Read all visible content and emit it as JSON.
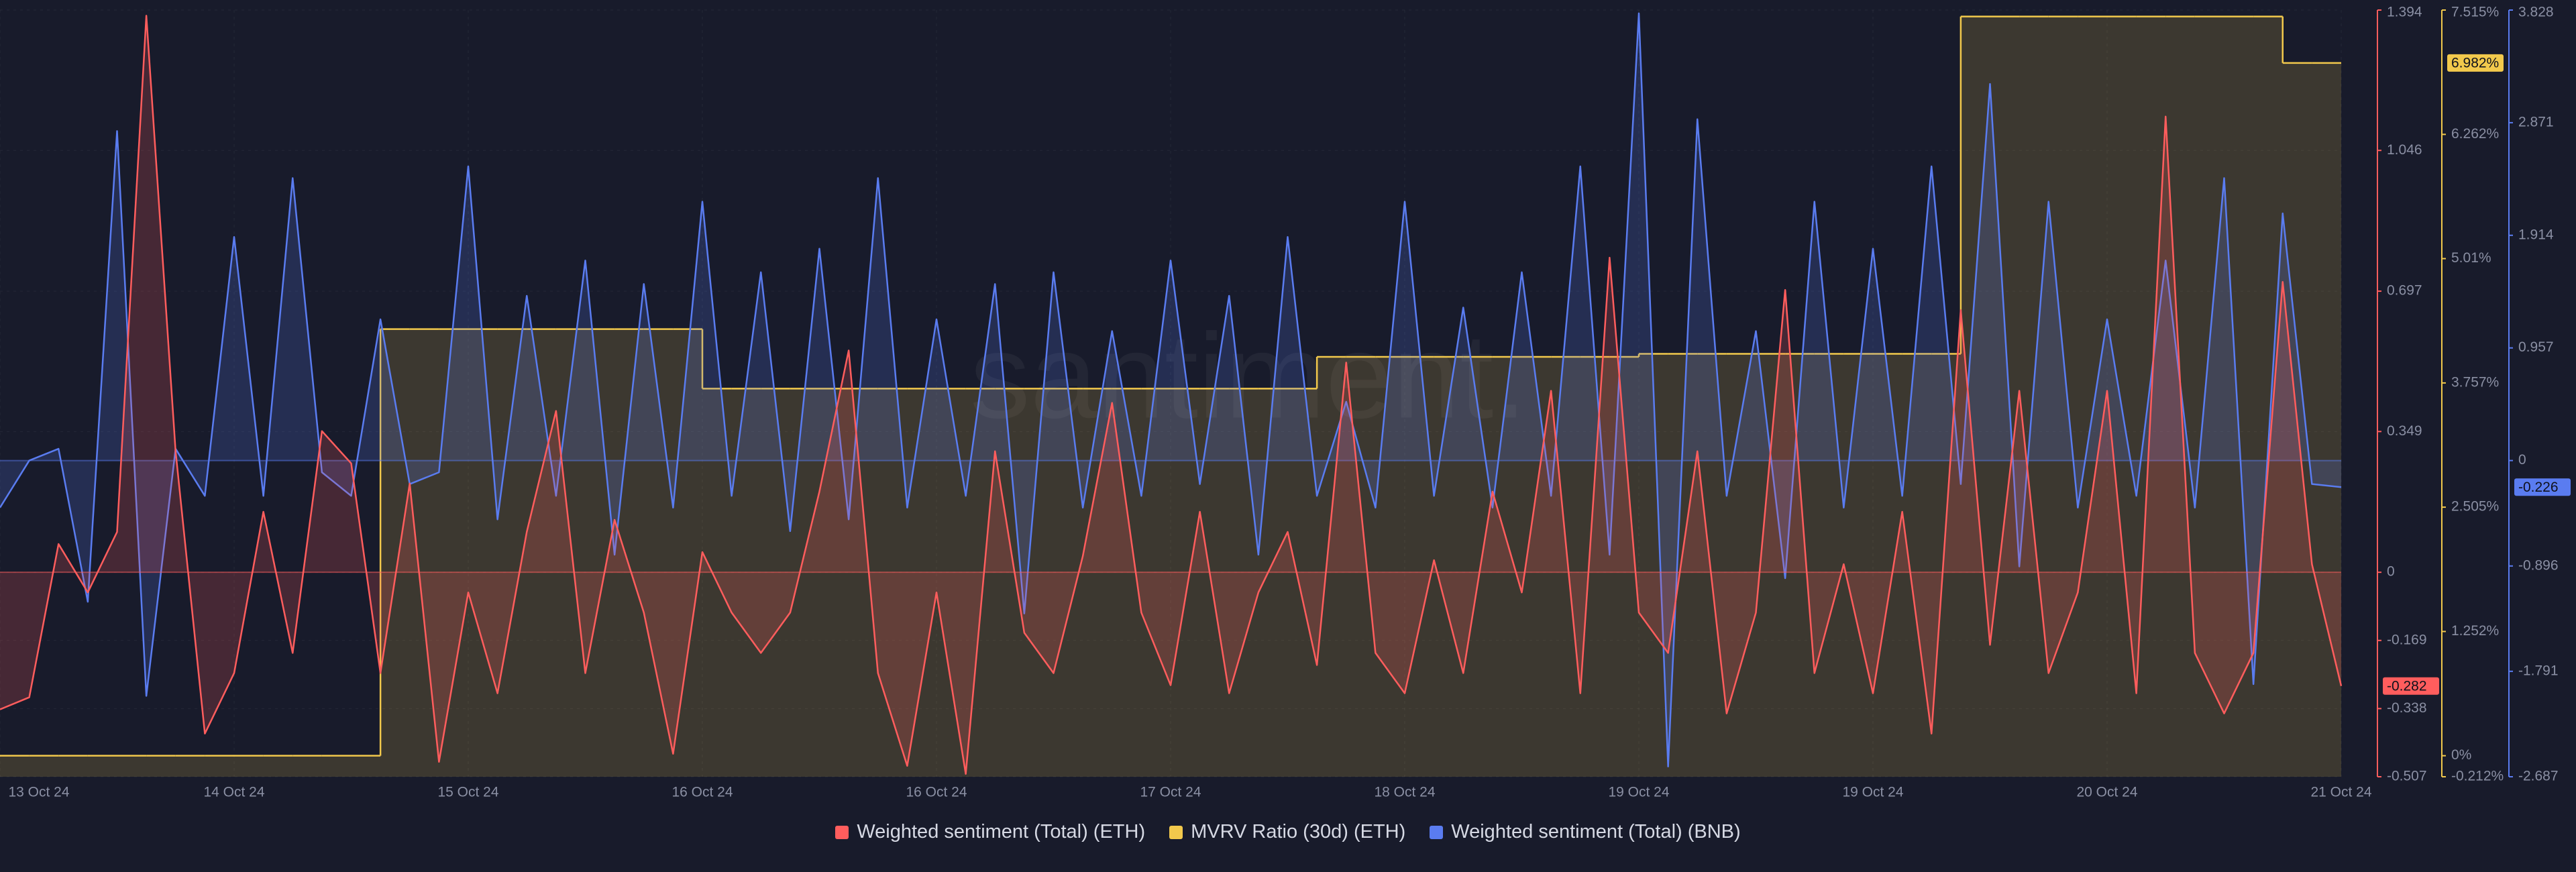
{
  "chart_data": {
    "type": "line",
    "watermark": "santiment.",
    "grid": true,
    "categories": [
      "13 Oct 24",
      null,
      null,
      null,
      null,
      null,
      null,
      null,
      "14 Oct 24",
      null,
      null,
      null,
      null,
      null,
      null,
      null,
      "15 Oct 24",
      null,
      null,
      null,
      null,
      null,
      null,
      null,
      "16 Oct 24",
      null,
      null,
      null,
      null,
      null,
      null,
      null,
      "16 Oct 24",
      null,
      null,
      null,
      null,
      null,
      null,
      null,
      "17 Oct 24",
      null,
      null,
      null,
      null,
      null,
      null,
      null,
      "18 Oct 24",
      null,
      null,
      null,
      null,
      null,
      null,
      null,
      "19 Oct 24",
      null,
      null,
      null,
      null,
      null,
      null,
      null,
      "19 Oct 24",
      null,
      null,
      null,
      null,
      null,
      null,
      null,
      "20 Oct 24",
      null,
      null,
      null,
      null,
      null,
      null,
      null,
      "21 Oct 24"
    ],
    "ylim": [
      -0.507,
      1.394
    ],
    "yticks": [
      -0.507,
      -0.338,
      -0.169,
      0,
      0.349,
      0.697,
      1.046,
      1.394
    ],
    "y2lim": [
      -0.212,
      7.515
    ],
    "y2ticks": [
      {
        "value": -0.212,
        "label": "-0.212%"
      },
      {
        "value": 0,
        "label": "0%"
      },
      {
        "value": 1.252,
        "label": "1.252%"
      },
      {
        "value": 2.505,
        "label": "2.505%"
      },
      {
        "value": 3.757,
        "label": "3.757%"
      },
      {
        "value": 5.01,
        "label": "5.01%"
      },
      {
        "value": 6.262,
        "label": "6.262%"
      },
      {
        "value": 7.515,
        "label": "7.515%"
      }
    ],
    "y3lim": [
      -2.687,
      3.828
    ],
    "y3ticks": [
      -2.687,
      -1.791,
      -0.896,
      0,
      0.957,
      1.914,
      2.871,
      3.828
    ],
    "series": [
      {
        "name": "Weighted sentiment (Total) (ETH)",
        "color": "#ff5d5d",
        "axis": "y",
        "last_value_label": "-0.282",
        "values": [
          -0.34,
          -0.31,
          0.07,
          -0.05,
          0.1,
          1.38,
          0.3,
          -0.4,
          -0.25,
          0.15,
          -0.2,
          0.35,
          0.27,
          -0.25,
          0.22,
          -0.47,
          -0.05,
          -0.3,
          0.1,
          0.4,
          -0.25,
          0.13,
          -0.1,
          -0.45,
          0.05,
          -0.1,
          -0.2,
          -0.1,
          0.2,
          0.55,
          -0.25,
          -0.48,
          -0.05,
          -0.5,
          0.3,
          -0.15,
          -0.25,
          0.04,
          0.42,
          -0.1,
          -0.28,
          0.15,
          -0.3,
          -0.05,
          0.1,
          -0.23,
          0.52,
          -0.2,
          -0.3,
          0.03,
          -0.25,
          0.2,
          -0.05,
          0.45,
          -0.3,
          0.78,
          -0.1,
          -0.2,
          0.3,
          -0.35,
          -0.1,
          0.7,
          -0.25,
          0.02,
          -0.3,
          0.15,
          -0.4,
          0.65,
          -0.18,
          0.45,
          -0.25,
          -0.05,
          0.45,
          -0.3,
          1.13,
          -0.2,
          -0.35,
          -0.2,
          0.72,
          0.02,
          -0.282
        ]
      },
      {
        "name": "MVRV Ratio (30d) (ETH)",
        "color": "#f2c94c",
        "axis": "y2",
        "step": true,
        "last_value_label": "6.982%",
        "values": [
          0,
          0,
          0,
          0,
          0,
          0,
          0,
          0,
          0,
          0,
          0,
          0,
          0,
          4.3,
          4.3,
          4.3,
          4.3,
          4.3,
          4.3,
          4.3,
          4.3,
          4.3,
          4.3,
          4.3,
          3.7,
          3.7,
          3.7,
          3.7,
          3.7,
          3.7,
          3.7,
          3.7,
          3.7,
          3.7,
          3.7,
          3.7,
          3.7,
          3.7,
          3.7,
          3.7,
          3.7,
          3.7,
          3.7,
          3.7,
          3.7,
          4.02,
          4.02,
          4.02,
          4.02,
          4.02,
          4.02,
          4.02,
          4.02,
          4.02,
          4.02,
          4.02,
          4.05,
          4.05,
          4.05,
          4.05,
          4.05,
          4.05,
          4.05,
          4.05,
          4.05,
          4.05,
          4.05,
          7.45,
          7.45,
          7.45,
          7.45,
          7.45,
          7.45,
          7.45,
          7.45,
          7.45,
          7.45,
          7.45,
          6.982,
          6.982,
          6.982
        ]
      },
      {
        "name": "Weighted sentiment (Total) (BNB)",
        "color": "#5a7cf0",
        "axis": "y3",
        "last_value_label": "-0.226",
        "values": [
          -0.4,
          0.0,
          0.1,
          -1.2,
          2.8,
          -2.0,
          0.1,
          -0.3,
          1.9,
          -0.3,
          2.4,
          -0.1,
          -0.3,
          1.2,
          -0.2,
          -0.1,
          2.5,
          -0.5,
          1.4,
          -0.3,
          1.7,
          -0.8,
          1.5,
          -0.4,
          2.2,
          -0.3,
          1.6,
          -0.6,
          1.8,
          -0.5,
          2.4,
          -0.4,
          1.2,
          -0.3,
          1.5,
          -1.3,
          1.6,
          -0.4,
          1.1,
          -0.3,
          1.7,
          -0.2,
          1.4,
          -0.8,
          1.9,
          -0.3,
          0.5,
          -0.4,
          2.2,
          -0.3,
          1.3,
          -0.4,
          1.6,
          -0.3,
          2.5,
          -0.8,
          3.8,
          -2.6,
          2.9,
          -0.3,
          1.1,
          -1.0,
          2.2,
          -0.4,
          1.8,
          -0.3,
          2.5,
          -0.2,
          3.2,
          -0.9,
          2.2,
          -0.4,
          1.2,
          -0.3,
          1.7,
          -0.4,
          2.4,
          -1.9,
          2.1,
          -0.2,
          -0.226
        ]
      }
    ]
  }
}
